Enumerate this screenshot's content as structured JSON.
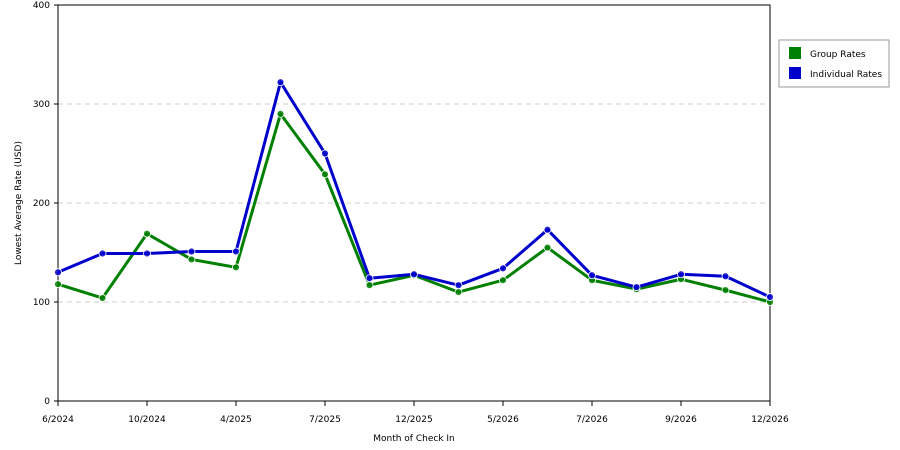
{
  "chart_data": {
    "type": "line",
    "title": "",
    "xlabel": "Month of Check In",
    "ylabel": "Lowest Average Rate (USD)",
    "ylim": [
      0,
      400
    ],
    "yticks": [
      "0",
      "100",
      "200",
      "300",
      "400"
    ],
    "x_ticks": [
      "6/2024",
      "10/2024",
      "4/2025",
      "7/2025",
      "12/2025",
      "5/2026",
      "7/2026",
      "9/2026",
      "12/2026"
    ],
    "grid": "horizontal dashed",
    "legend_position": "right",
    "series": [
      {
        "name": "Group Rates",
        "color": "#008000",
        "values": [
          118,
          104,
          169,
          143,
          135,
          290,
          229,
          117,
          127,
          110,
          122,
          155,
          122,
          113,
          123,
          112,
          100
        ]
      },
      {
        "name": "Individual Rates",
        "color": "#0000cc",
        "values": [
          130,
          149,
          149,
          151,
          151,
          322,
          250,
          124,
          128,
          117,
          134,
          173,
          127,
          115,
          128,
          126,
          105
        ]
      }
    ]
  }
}
